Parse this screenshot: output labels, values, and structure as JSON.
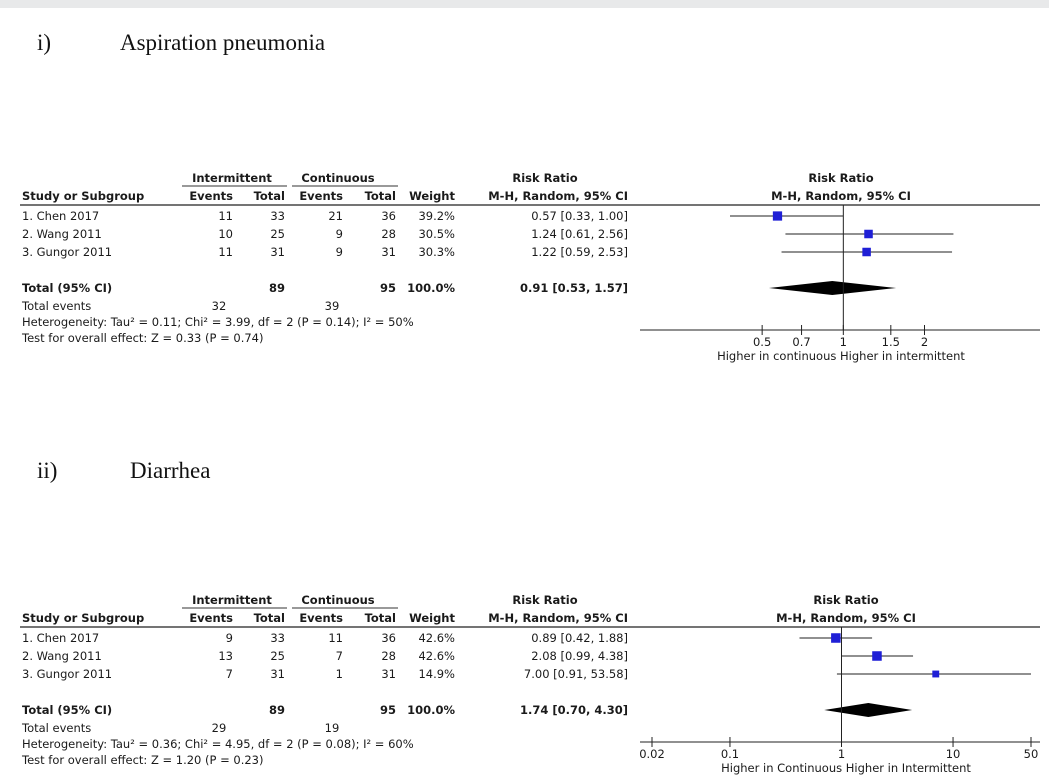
{
  "chart_data": [
    {
      "type": "forest",
      "section_numeral": "i)",
      "section_title": "Aspiration pneumonia",
      "group1_header": "Intermittent",
      "group2_header": "Continuous",
      "columns": {
        "study": "Study or Subgroup",
        "events": "Events",
        "total": "Total",
        "weight": "Weight",
        "effect_header": "Risk Ratio",
        "effect_subheader": "M-H, Random, 95% CI"
      },
      "studies": [
        {
          "name": "1. Chen 2017",
          "e1": "11",
          "n1": "33",
          "e2": "21",
          "n2": "36",
          "weight": "39.2%",
          "ci_text": "0.57 [0.33, 1.00]",
          "rr": 0.57,
          "lo": 0.33,
          "hi": 1.0,
          "w": 39.2
        },
        {
          "name": "2. Wang 2011",
          "e1": "10",
          "n1": "25",
          "e2": "9",
          "n2": "28",
          "weight": "30.5%",
          "ci_text": "1.24 [0.61, 2.56]",
          "rr": 1.24,
          "lo": 0.61,
          "hi": 2.56,
          "w": 30.5
        },
        {
          "name": "3. Gungor 2011",
          "e1": "11",
          "n1": "31",
          "e2": "9",
          "n2": "31",
          "weight": "30.3%",
          "ci_text": "1.22 [0.59, 2.53]",
          "rr": 1.22,
          "lo": 0.59,
          "hi": 2.53,
          "w": 30.3
        }
      ],
      "total": {
        "label": "Total (95% CI)",
        "n1": "89",
        "n2": "95",
        "weight": "100.0%",
        "ci_text": "0.91 [0.53, 1.57]",
        "rr": 0.91,
        "lo": 0.53,
        "hi": 1.57
      },
      "total_events": {
        "label": "Total events",
        "e1": "32",
        "e2": "39"
      },
      "heterogeneity": "Heterogeneity: Tau² = 0.11; Chi² = 3.99, df = 2 (P = 0.14); I² = 50%",
      "overall_effect": "Test for overall effect: Z = 0.33 (P = 0.74)",
      "plot_header": "Risk Ratio",
      "plot_subheader": "M-H, Random, 95% CI",
      "axis": {
        "scale": "log",
        "min": 0.38,
        "max": 3.0,
        "ticks": [
          {
            "v": 0.5,
            "label": "0.5"
          },
          {
            "v": 0.7,
            "label": "0.7"
          },
          {
            "v": 1,
            "label": "1"
          },
          {
            "v": 1.5,
            "label": "1.5"
          },
          {
            "v": 2,
            "label": "2"
          }
        ]
      },
      "favours": "Higher in continuous Higher in intermittent",
      "marker_color": "#1f1fd6"
    },
    {
      "type": "forest",
      "section_numeral": "ii)",
      "section_title": "Diarrhea",
      "group1_header": "Intermittent",
      "group2_header": "Continuous",
      "columns": {
        "study": "Study or Subgroup",
        "events": "Events",
        "total": "Total",
        "weight": "Weight",
        "effect_header": "Risk Ratio",
        "effect_subheader": "M-H, Random, 95% CI"
      },
      "studies": [
        {
          "name": "1. Chen 2017",
          "e1": "9",
          "n1": "33",
          "e2": "11",
          "n2": "36",
          "weight": "42.6%",
          "ci_text": "0.89 [0.42, 1.88]",
          "rr": 0.89,
          "lo": 0.42,
          "hi": 1.88,
          "w": 42.6
        },
        {
          "name": "2. Wang 2011",
          "e1": "13",
          "n1": "25",
          "e2": "7",
          "n2": "28",
          "weight": "42.6%",
          "ci_text": "2.08 [0.99, 4.38]",
          "rr": 2.08,
          "lo": 0.99,
          "hi": 4.38,
          "w": 42.6
        },
        {
          "name": "3. Gungor 2011",
          "e1": "7",
          "n1": "31",
          "e2": "1",
          "n2": "31",
          "weight": "14.9%",
          "ci_text": "7.00 [0.91, 53.58]",
          "rr": 7.0,
          "lo": 0.91,
          "hi": 53.58,
          "w": 14.9
        }
      ],
      "total": {
        "label": "Total (95% CI)",
        "n1": "89",
        "n2": "95",
        "weight": "100.0%",
        "ci_text": "1.74 [0.70, 4.30]",
        "rr": 1.74,
        "lo": 0.7,
        "hi": 4.3
      },
      "total_events": {
        "label": "Total events",
        "e1": "29",
        "e2": "19"
      },
      "heterogeneity": "Heterogeneity: Tau² = 0.36; Chi² = 4.95, df = 2 (P = 0.08); I² = 60%",
      "overall_effect": "Test for overall effect: Z = 1.20 (P = 0.23)",
      "plot_header": "Risk Ratio",
      "plot_subheader": "M-H, Random, 95% CI",
      "axis": {
        "scale": "log",
        "min": 0.02,
        "max": 50,
        "ticks": [
          {
            "v": 0.02,
            "label": "0.02"
          },
          {
            "v": 0.1,
            "label": "0.1"
          },
          {
            "v": 1,
            "label": "1"
          },
          {
            "v": 10,
            "label": "10"
          },
          {
            "v": 50,
            "label": "50"
          }
        ]
      },
      "favours": "Higher in Continuous Higher in Intermittent",
      "marker_color": "#1f1fd6"
    }
  ]
}
